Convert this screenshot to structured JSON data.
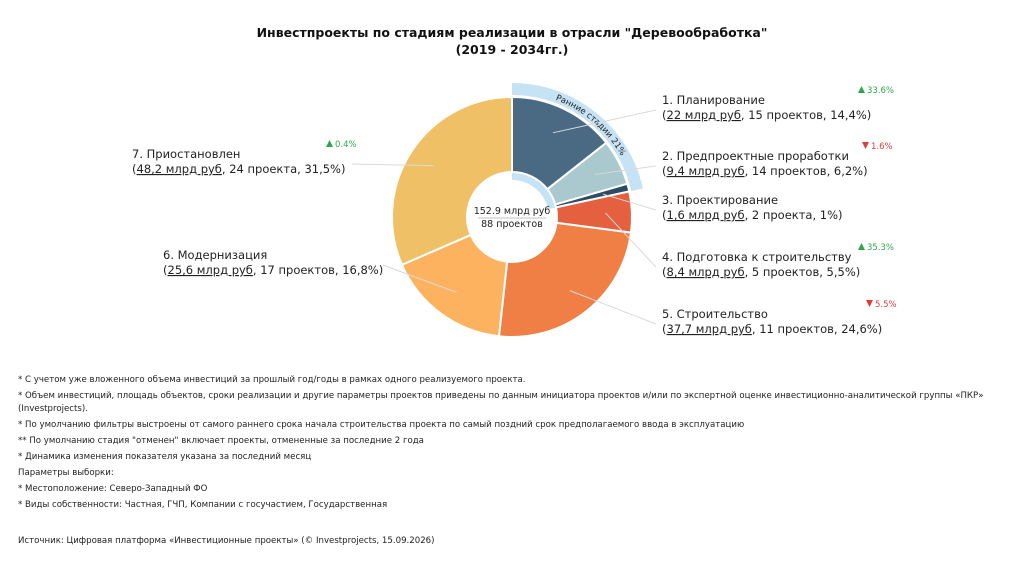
{
  "title_line1": "Инвестпроекты по стадиям реализации в отрасли \"Деревообработка\"",
  "title_line2": "(2019 - 2034гг.)",
  "center": {
    "line1": "152.9 млрд руб",
    "line2": "88 проектов"
  },
  "early_stages_label": "Ранние стадии 21%",
  "early_stages_color": "#c5e3f5",
  "chart_data": {
    "type": "pie",
    "subtype": "donut",
    "total_value": 152.9,
    "total_projects": 88,
    "unit": "млрд руб",
    "slices": [
      {
        "name": "1. Планирование",
        "amount_text": "22 млрд руб",
        "rest_text": ", 15 проектов, 14,4%)",
        "value": 22,
        "projects": 15,
        "share": 14.4,
        "color": "#4a6a84",
        "trend_dir": "up",
        "trend_text": "33.6%"
      },
      {
        "name": "2. Предпроектные проработки",
        "amount_text": "9,4 млрд руб",
        "rest_text": ", 14 проектов, 6,2%)",
        "value": 9.4,
        "projects": 14,
        "share": 6.2,
        "color": "#a9c9cf",
        "trend_dir": "down",
        "trend_text": "1.6%"
      },
      {
        "name": "3. Проектирование",
        "amount_text": "1,6 млрд руб",
        "rest_text": ", 2 проекта, 1%)",
        "value": 1.6,
        "projects": 2,
        "share": 1.0,
        "color": "#2e4b66",
        "trend_dir": "",
        "trend_text": ""
      },
      {
        "name": "4. Подготовка к строительству",
        "amount_text": "8,4 млрд руб",
        "rest_text": ", 5 проектов, 5,5%)",
        "value": 8.4,
        "projects": 5,
        "share": 5.5,
        "color": "#e5603f",
        "trend_dir": "up",
        "trend_text": "35.3%"
      },
      {
        "name": "5. Строительство",
        "amount_text": "37,7 млрд руб",
        "rest_text": ", 11 проектов, 24,6%)",
        "value": 37.7,
        "projects": 11,
        "share": 24.6,
        "color": "#f07f45",
        "trend_dir": "down",
        "trend_text": "5.5%"
      },
      {
        "name": "6. Модернизация",
        "amount_text": "25,6 млрд руб",
        "rest_text": ", 17 проектов, 16,8%)",
        "value": 25.6,
        "projects": 17,
        "share": 16.8,
        "color": "#fcb25e",
        "trend_dir": "",
        "trend_text": ""
      },
      {
        "name": "7. Приостановлен",
        "amount_text": "48,2 млрд руб",
        "rest_text": ", 24 проекта, 31,5%)",
        "value": 48.2,
        "projects": 24,
        "share": 31.5,
        "color": "#f0c067",
        "trend_dir": "up",
        "trend_text": "0.4%"
      }
    ]
  },
  "trend_colors": {
    "up": "#2ea84a",
    "down": "#e03b3b"
  },
  "notes": [
    "* С учетом уже вложенного объема инвестиций за прошлый год/годы в рамках одного реализуемого проекта.",
    "* Объем инвестиций, площадь объектов, сроки реализации и другие параметры проектов приведены по данным инициатора проектов и/или по экспертной оценке инвестиционно-аналитической группы «ПКР» (Investprojects).",
    "* По умолчанию фильтры выстроены от самого раннего срока начала строительства проекта по самый поздний срок предполагаемого ввода в эксплуатацию",
    "** По умолчанию стадия \"отменен\" включает проекты, отмененные за последние 2 года",
    "* Динамика изменения показателя указана за последний месяц",
    "Параметры выборки:",
    "* Местоположение: Северо-Западный ФО",
    "* Виды собственности: Частная, ГЧП, Компании с госучастием, Государственная"
  ],
  "source": "Источник: Цифровая платформа «Инвестиционные проекты» (© Investprojects, 15.09.2026)"
}
